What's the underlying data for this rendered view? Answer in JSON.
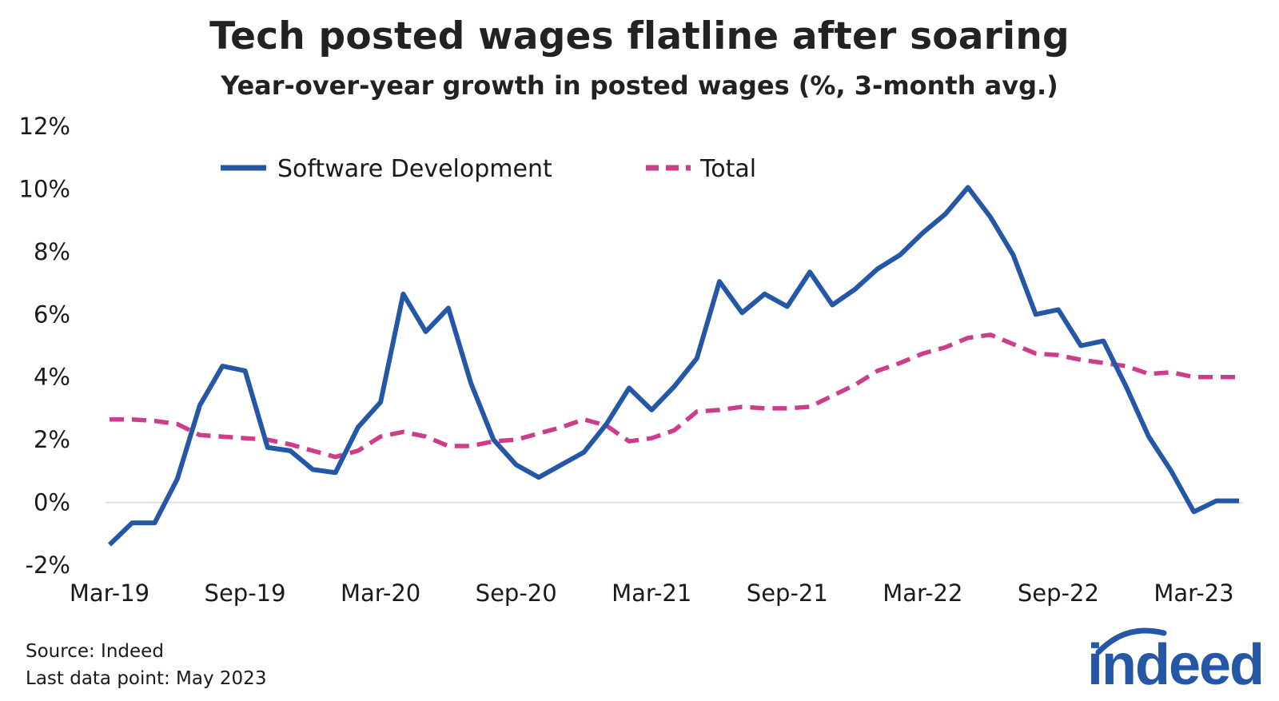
{
  "title": "Tech posted wages flatline after soaring",
  "subtitle": "Year-over-year growth in posted wages (%, 3-month avg.)",
  "source": "Source: Indeed",
  "last_data_point": "Last data point: May 2023",
  "logo_text": "indeed",
  "colors": {
    "software": "#2557a7",
    "total": "#cd3d8a",
    "baseline": "#d9d9d9",
    "logo": "#2557a7"
  },
  "chart_data": {
    "type": "line",
    "title": "Tech posted wages flatline after soaring",
    "subtitle": "Year-over-year growth in posted wages (%, 3-month avg.)",
    "xlabel": "",
    "ylabel": "",
    "ylim": [
      -2,
      12
    ],
    "yticks": [
      -2,
      0,
      2,
      4,
      6,
      8,
      10,
      12
    ],
    "ytick_labels": [
      "-2%",
      "0%",
      "2%",
      "4%",
      "6%",
      "8%",
      "10%",
      "12%"
    ],
    "x": [
      "Mar-19",
      "Apr-19",
      "May-19",
      "Jun-19",
      "Jul-19",
      "Aug-19",
      "Sep-19",
      "Oct-19",
      "Nov-19",
      "Dec-19",
      "Jan-20",
      "Feb-20",
      "Mar-20",
      "Apr-20",
      "May-20",
      "Jun-20",
      "Jul-20",
      "Aug-20",
      "Sep-20",
      "Oct-20",
      "Nov-20",
      "Dec-20",
      "Jan-21",
      "Feb-21",
      "Mar-21",
      "Apr-21",
      "May-21",
      "Jun-21",
      "Jul-21",
      "Aug-21",
      "Sep-21",
      "Oct-21",
      "Nov-21",
      "Dec-21",
      "Jan-22",
      "Feb-22",
      "Mar-22",
      "Apr-22",
      "May-22",
      "Jun-22",
      "Jul-22",
      "Aug-22",
      "Sep-22",
      "Oct-22",
      "Nov-22",
      "Dec-22",
      "Jan-23",
      "Feb-23",
      "Mar-23",
      "Apr-23",
      "May-23"
    ],
    "xtick_labels": [
      {
        "index": 0,
        "label": "Mar-19"
      },
      {
        "index": 6,
        "label": "Sep-19"
      },
      {
        "index": 12,
        "label": "Mar-20"
      },
      {
        "index": 18,
        "label": "Sep-20"
      },
      {
        "index": 24,
        "label": "Mar-21"
      },
      {
        "index": 30,
        "label": "Sep-21"
      },
      {
        "index": 36,
        "label": "Mar-22"
      },
      {
        "index": 42,
        "label": "Sep-22"
      },
      {
        "index": 48,
        "label": "Mar-23"
      }
    ],
    "legend_position": "top-center",
    "series": [
      {
        "name": "Software Development",
        "style": "solid",
        "values": [
          -1.35,
          -0.65,
          -0.65,
          0.75,
          3.1,
          4.35,
          4.2,
          1.75,
          1.65,
          1.05,
          0.95,
          2.4,
          3.2,
          6.65,
          5.45,
          6.2,
          3.8,
          2.0,
          1.2,
          0.8,
          1.2,
          1.6,
          2.5,
          3.65,
          2.95,
          3.7,
          4.6,
          7.05,
          6.05,
          6.65,
          6.25,
          7.35,
          6.3,
          6.8,
          7.45,
          7.9,
          8.6,
          9.2,
          10.05,
          9.1,
          7.9,
          6.0,
          6.15,
          5.0,
          5.15,
          3.7,
          2.1,
          1.0,
          -0.3,
          0.05,
          0.05
        ]
      },
      {
        "name": "Total",
        "style": "dashed",
        "values": [
          2.65,
          2.65,
          2.6,
          2.5,
          2.15,
          2.1,
          2.05,
          2.0,
          1.85,
          1.65,
          1.45,
          1.65,
          2.1,
          2.25,
          2.1,
          1.8,
          1.8,
          1.95,
          2.0,
          2.2,
          2.4,
          2.65,
          2.45,
          1.95,
          2.05,
          2.3,
          2.9,
          2.95,
          3.05,
          3.0,
          3.0,
          3.05,
          3.4,
          3.75,
          4.2,
          4.45,
          4.75,
          4.95,
          5.25,
          5.35,
          5.05,
          4.75,
          4.7,
          4.55,
          4.45,
          4.35,
          4.1,
          4.15,
          4.0,
          4.0,
          4.0
        ]
      }
    ]
  }
}
